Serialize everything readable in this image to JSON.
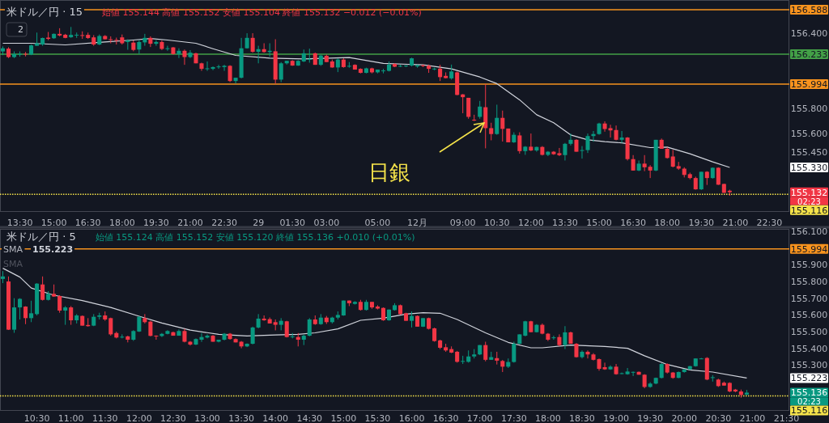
{
  "chart_data": [
    {
      "type": "candlestick",
      "title": "米ドル／円 · 15",
      "subtitle": "始値 155.144 高値 155.152 安値 155.104 終値 155.132 −0.012 (−0.01%)",
      "categories": [
        null,
        null,
        null,
        "13:30",
        null,
        null,
        null,
        null,
        null,
        "15:00",
        null,
        null,
        null,
        null,
        null,
        "16:30",
        null,
        null,
        null,
        null,
        null,
        "18:00",
        null,
        null,
        null,
        null,
        null,
        "19:30",
        null,
        null,
        null,
        null,
        null,
        "21:00",
        null,
        null,
        null,
        null,
        null,
        "22:30",
        null,
        null,
        null,
        null,
        null,
        "29",
        null,
        null,
        null,
        null,
        null,
        "01:30",
        null,
        null,
        null,
        null,
        null,
        "03:00",
        null,
        null,
        null,
        null,
        null,
        null,
        null,
        null,
        "05:00",
        null,
        null,
        null,
        null,
        null,
        null,
        "12月",
        null,
        null,
        null,
        null,
        null,
        null,
        null,
        "09:00",
        null,
        null,
        null,
        null,
        null,
        "10:30",
        null,
        null,
        null,
        null,
        null,
        "12:00",
        null,
        null,
        null,
        null,
        null,
        "13:30",
        null,
        null,
        null,
        null,
        null,
        "15:00",
        null,
        null,
        null,
        null,
        null,
        "16:30",
        null,
        null,
        null,
        null,
        null,
        "18:00",
        null,
        null,
        null,
        null,
        null,
        "19:30",
        null,
        null,
        null,
        null,
        null,
        "21:00",
        null,
        null,
        null,
        null,
        null,
        "22:30",
        null,
        null,
        null
      ],
      "ohlc": [
        [
          156.255,
          156.295,
          156.225,
          156.28
        ],
        [
          156.277,
          156.288,
          156.202,
          156.21
        ],
        [
          156.21,
          156.255,
          156.202,
          156.234
        ],
        [
          156.232,
          156.255,
          156.213,
          156.236
        ],
        [
          156.236,
          156.25,
          156.215,
          156.234
        ],
        [
          156.23,
          156.31,
          156.225,
          156.303
        ],
        [
          156.3,
          156.405,
          156.3,
          156.32
        ],
        [
          156.31,
          156.365,
          156.3,
          156.362
        ],
        [
          156.365,
          156.41,
          156.345,
          156.355
        ],
        [
          156.36,
          156.398,
          156.355,
          156.395
        ],
        [
          156.395,
          156.44,
          156.375,
          156.382
        ],
        [
          156.388,
          156.395,
          156.36,
          156.363
        ],
        [
          156.368,
          156.45,
          156.363,
          156.387
        ],
        [
          156.387,
          156.405,
          156.363,
          156.388
        ],
        [
          156.385,
          156.415,
          156.355,
          156.383
        ],
        [
          156.387,
          156.405,
          156.355,
          156.362
        ],
        [
          156.367,
          156.385,
          156.3,
          156.31
        ],
        [
          156.31,
          156.39,
          156.305,
          156.378
        ],
        [
          156.378,
          156.385,
          156.35,
          156.352
        ],
        [
          156.352,
          156.375,
          156.32,
          156.347
        ],
        [
          156.347,
          156.365,
          156.31,
          156.344
        ],
        [
          156.367,
          156.39,
          156.31,
          156.32
        ],
        [
          156.33,
          156.352,
          156.268,
          156.342
        ],
        [
          156.325,
          156.342,
          156.256,
          156.267
        ],
        [
          156.27,
          156.345,
          156.234,
          156.33
        ],
        [
          156.327,
          156.395,
          156.3,
          156.363
        ],
        [
          156.363,
          156.375,
          156.29,
          156.316
        ],
        [
          156.316,
          156.345,
          156.3,
          156.33
        ],
        [
          156.33,
          156.342,
          156.266,
          156.275
        ],
        [
          156.277,
          156.3,
          156.26,
          156.28
        ],
        [
          156.287,
          156.29,
          156.23,
          156.234
        ],
        [
          156.234,
          156.28,
          156.202,
          156.26
        ],
        [
          156.26,
          156.27,
          156.148,
          156.21
        ],
        [
          156.21,
          156.265,
          156.202,
          156.245
        ],
        [
          156.24,
          156.244,
          156.16,
          156.16
        ],
        [
          156.16,
          156.165,
          156.1,
          156.116
        ],
        [
          156.116,
          156.175,
          156.1,
          156.12
        ],
        [
          156.116,
          156.135,
          156.105,
          156.13
        ],
        [
          156.13,
          156.148,
          156.116,
          156.135
        ],
        [
          156.13,
          156.148,
          156.1,
          156.14
        ],
        [
          156.14,
          156.145,
          156.01,
          156.019
        ],
        [
          156.019,
          156.045,
          155.998,
          156.045
        ],
        [
          156.045,
          156.363,
          156.04,
          156.28
        ],
        [
          156.28,
          156.4,
          156.277,
          156.363
        ],
        [
          156.363,
          156.4,
          156.245,
          156.252
        ],
        [
          156.252,
          156.3,
          156.16,
          156.273
        ],
        [
          156.273,
          156.32,
          156.245,
          156.25
        ],
        [
          156.25,
          156.32,
          156.213,
          156.26
        ],
        [
          156.256,
          156.352,
          155.998,
          156.03
        ],
        [
          156.03,
          156.17,
          156.01,
          156.16
        ],
        [
          156.16,
          156.18,
          156.15,
          156.18
        ],
        [
          156.18,
          156.185,
          156.14,
          156.142
        ],
        [
          156.142,
          156.185,
          156.14,
          156.18
        ],
        [
          156.175,
          156.27,
          156.17,
          156.24
        ],
        [
          156.19,
          156.277,
          156.165,
          156.195
        ],
        [
          156.24,
          156.245,
          156.148,
          156.148
        ],
        [
          156.148,
          156.23,
          156.14,
          156.222
        ],
        [
          156.22,
          156.23,
          156.17,
          156.17
        ],
        [
          156.175,
          156.19,
          156.125,
          156.127
        ],
        [
          156.127,
          156.2,
          156.09,
          156.19
        ],
        [
          156.19,
          156.2,
          156.125,
          156.13
        ],
        [
          156.14,
          156.17,
          156.125,
          156.14
        ],
        [
          156.148,
          156.152,
          156.11,
          156.11
        ],
        [
          156.116,
          156.12,
          156.08,
          156.084
        ],
        [
          156.084,
          156.125,
          156.08,
          156.12
        ],
        [
          156.12,
          156.125,
          156.08,
          156.088
        ],
        [
          156.088,
          156.11,
          156.08,
          156.11
        ],
        [
          156.1,
          156.116,
          156.08,
          156.103
        ],
        [
          156.1,
          156.175,
          156.095,
          156.15
        ],
        [
          156.155,
          156.16,
          156.13,
          156.133
        ],
        [
          156.138,
          156.148,
          156.13,
          156.14
        ],
        [
          156.14,
          156.145,
          156.13,
          156.142
        ],
        [
          156.142,
          156.205,
          156.135,
          156.2
        ],
        [
          156.135,
          156.15,
          156.125,
          156.145
        ],
        [
          156.145,
          156.15,
          156.13,
          156.14
        ],
        [
          156.14,
          156.15,
          156.084,
          156.116
        ],
        [
          156.116,
          156.125,
          156.105,
          156.118
        ],
        [
          156.118,
          156.148,
          156.019,
          156.05
        ],
        [
          156.06,
          156.088,
          156.04,
          156.042
        ],
        [
          156.04,
          156.15,
          156.03,
          156.095
        ],
        [
          156.088,
          156.095,
          155.905,
          155.908
        ],
        [
          155.912,
          155.915,
          155.762,
          155.89
        ],
        [
          155.885,
          155.885,
          155.718,
          155.733
        ],
        [
          155.71,
          155.75,
          155.7,
          155.708
        ],
        [
          155.733,
          155.86,
          155.718,
          155.815
        ],
        [
          155.81,
          155.994,
          155.482,
          155.643
        ],
        [
          155.643,
          155.686,
          155.546,
          155.596
        ],
        [
          155.596,
          155.83,
          155.59,
          155.725
        ],
        [
          155.725,
          155.783,
          155.536,
          155.637
        ],
        [
          155.64,
          155.64,
          155.53,
          155.53
        ],
        [
          155.53,
          155.61,
          155.525,
          155.59
        ],
        [
          155.585,
          155.61,
          155.44,
          155.46
        ],
        [
          155.46,
          155.5,
          155.43,
          155.495
        ],
        [
          155.495,
          155.6,
          155.46,
          155.465
        ],
        [
          155.465,
          155.495,
          155.455,
          155.493
        ],
        [
          155.493,
          155.5,
          155.425,
          155.43
        ],
        [
          155.43,
          155.46,
          155.42,
          155.455
        ],
        [
          155.455,
          155.46,
          155.43,
          155.435
        ],
        [
          155.443,
          155.485,
          155.42,
          155.428
        ],
        [
          155.428,
          155.525,
          155.385,
          155.518
        ],
        [
          155.518,
          155.6,
          155.505,
          155.55
        ],
        [
          155.55,
          155.555,
          155.455,
          155.455
        ],
        [
          155.465,
          155.5,
          155.4,
          155.468
        ],
        [
          155.468,
          155.6,
          155.445,
          155.58
        ],
        [
          155.58,
          155.62,
          155.535,
          155.596
        ],
        [
          155.596,
          155.686,
          155.59,
          155.68
        ],
        [
          155.68,
          155.697,
          155.615,
          155.636
        ],
        [
          155.643,
          155.67,
          155.568,
          155.625
        ],
        [
          155.628,
          155.664,
          155.546,
          155.55
        ],
        [
          155.55,
          155.62,
          155.525,
          155.568
        ],
        [
          155.568,
          155.572,
          155.385,
          155.396
        ],
        [
          155.396,
          155.428,
          155.305,
          155.305
        ],
        [
          155.305,
          155.385,
          155.3,
          155.36
        ],
        [
          155.36,
          155.428,
          155.3,
          155.331
        ],
        [
          155.335,
          155.348,
          155.245,
          155.305
        ],
        [
          155.305,
          155.55,
          155.3,
          155.55
        ],
        [
          155.55,
          155.56,
          155.478,
          155.478
        ],
        [
          155.478,
          155.49,
          155.4,
          155.405
        ],
        [
          155.417,
          155.47,
          155.33,
          155.336
        ],
        [
          155.34,
          155.374,
          155.31,
          155.32
        ],
        [
          155.32,
          155.331,
          155.25,
          155.27
        ],
        [
          155.276,
          155.288,
          155.235,
          155.245
        ],
        [
          155.245,
          155.256,
          155.152,
          155.155
        ],
        [
          155.155,
          155.295,
          155.15,
          155.295
        ],
        [
          155.295,
          155.3,
          155.19,
          155.245
        ],
        [
          155.245,
          155.33,
          155.24,
          155.327
        ],
        [
          155.327,
          155.33,
          155.19,
          155.192
        ],
        [
          155.198,
          155.2,
          155.127,
          155.127
        ],
        [
          155.144,
          155.152,
          155.104,
          155.132
        ],
        null,
        null,
        null,
        null,
        null,
        null,
        null,
        null,
        null,
        null
      ],
      "series": [
        {
          "type": "line",
          "color": "#d1d4dc",
          "values": [
            156.32,
            null,
            null,
            null,
            null,
            156.32,
            null,
            null,
            null,
            null,
            null,
            156.307,
            null,
            null,
            null,
            null,
            null,
            null,
            156.331,
            null,
            null,
            null,
            null,
            156.346,
            null,
            null,
            156.357,
            null,
            null,
            156.346,
            null,
            null,
            null,
            null,
            156.32,
            null,
            null,
            156.277,
            null,
            null,
            null,
            156.223,
            null,
            null,
            null,
            null,
            null,
            156.202,
            null,
            null,
            null,
            null,
            null,
            156.195,
            null,
            null,
            null,
            null,
            null,
            null,
            null,
            156.206,
            null,
            null,
            null,
            null,
            null,
            156.159,
            null,
            null,
            null,
            null,
            null,
            null,
            156.148,
            null,
            null,
            null,
            null,
            156.116,
            null,
            null,
            null,
            null,
            156.051,
            null,
            null,
            155.998,
            null,
            null,
            null,
            155.869,
            null,
            null,
            155.75,
            null,
            null,
            155.686,
            null,
            null,
            155.589,
            null,
            null,
            155.55,
            null,
            null,
            155.535,
            null,
            null,
            155.525,
            null,
            null,
            null,
            null,
            155.488,
            null,
            null,
            155.492,
            null,
            null,
            null,
            155.439,
            null,
            null,
            null,
            155.374,
            null,
            null,
            155.33,
            null,
            null,
            null,
            null,
            null,
            null,
            null,
            null,
            null,
            null
          ]
        }
      ],
      "ylim": [
        154.975,
        156.665
      ],
      "yticks": [
        {
          "value": 156.4,
          "label": "156.400"
        },
        {
          "value": 155.8,
          "label": "155.800"
        },
        {
          "value": 155.6,
          "label": "155.600"
        },
        {
          "value": 155.45,
          "label": "155.450"
        }
      ],
      "ref_lines": [
        {
          "axis": "y",
          "value": 156.588,
          "label": "156.588",
          "color": "#f7931e"
        },
        {
          "axis": "y",
          "value": 156.233,
          "label": "156.233",
          "color": "#43a047"
        },
        {
          "axis": "y",
          "value": 155.994,
          "label": "155.994",
          "color": "#f7931e"
        },
        {
          "axis": "y",
          "value": 155.116,
          "label": "155.116",
          "color": "#f5e34a",
          "line_style": "dotted"
        }
      ],
      "annotations": [
        "2",
        "日銀",
        "155.330",
        "155.132",
        "02:23"
      ]
    },
    {
      "type": "candlestick",
      "title": "米ドル／円 · 5",
      "subtitle": "始値 155.124 高値 155.152 安値 155.120 終値 155.136 +0.010 (+0.01%)",
      "categories": [
        null,
        null,
        null,
        null,
        null,
        null,
        "10:30",
        null,
        null,
        null,
        null,
        null,
        "11:00",
        null,
        null,
        null,
        null,
        null,
        "11:30",
        null,
        null,
        null,
        null,
        null,
        "12:00",
        null,
        null,
        null,
        null,
        null,
        "12:30",
        null,
        null,
        null,
        null,
        null,
        "13:00",
        null,
        null,
        null,
        null,
        null,
        "13:30",
        null,
        null,
        null,
        null,
        null,
        "14:00",
        null,
        null,
        null,
        null,
        null,
        "14:30",
        null,
        null,
        null,
        null,
        null,
        "15:00",
        null,
        null,
        null,
        null,
        null,
        "15:30",
        null,
        null,
        null,
        null,
        null,
        "16:00",
        null,
        null,
        null,
        null,
        null,
        "16:30",
        null,
        null,
        null,
        null,
        null,
        "17:00",
        null,
        null,
        null,
        null,
        null,
        "17:30",
        null,
        null,
        null,
        null,
        null,
        "18:00",
        null,
        null,
        null,
        null,
        null,
        "18:30",
        null,
        null,
        null,
        null,
        null,
        "19:00",
        null,
        null,
        null,
        null,
        null,
        "19:30",
        null,
        null,
        null,
        null,
        null,
        "20:00",
        null,
        null,
        null,
        null,
        null,
        "20:30",
        null,
        null,
        null,
        null,
        null,
        "21:00",
        null,
        null,
        null,
        null,
        null,
        "21:30"
      ],
      "ohlc": [
        [
          155.815,
          155.862,
          155.79,
          155.83
        ],
        [
          155.8,
          155.83,
          155.51,
          155.512
        ],
        [
          155.512,
          155.7,
          155.493,
          155.645
        ],
        [
          155.645,
          155.7,
          155.573,
          155.696
        ],
        [
          155.65,
          155.652,
          155.545,
          155.581
        ],
        [
          155.581,
          155.685,
          155.557,
          155.61
        ],
        [
          155.605,
          155.79,
          155.597,
          155.787
        ],
        [
          155.782,
          155.83,
          155.686,
          155.69
        ],
        [
          155.69,
          155.742,
          155.686,
          155.726
        ],
        [
          155.726,
          155.782,
          155.708,
          155.71
        ],
        [
          155.713,
          155.718,
          155.613,
          155.626
        ],
        [
          155.626,
          155.653,
          155.541,
          155.645
        ],
        [
          155.645,
          155.653,
          155.541,
          155.568
        ],
        [
          155.568,
          155.605,
          155.549,
          155.597
        ],
        [
          155.594,
          155.597,
          155.536,
          155.536
        ],
        [
          155.54,
          155.581,
          155.53,
          155.533
        ],
        [
          155.536,
          155.605,
          155.533,
          155.589
        ],
        [
          155.589,
          155.613,
          155.573,
          155.597
        ],
        [
          155.597,
          155.621,
          155.565,
          155.573
        ],
        [
          155.581,
          155.584,
          155.476,
          155.484
        ],
        [
          155.492,
          155.5,
          155.46,
          155.465
        ],
        [
          155.468,
          155.484,
          155.46,
          155.47
        ],
        [
          155.472,
          155.476,
          155.436,
          155.452
        ],
        [
          155.452,
          155.509,
          155.445,
          155.504
        ],
        [
          155.501,
          155.592,
          155.498,
          155.589
        ],
        [
          155.581,
          155.605,
          155.549,
          155.557
        ],
        [
          155.56,
          155.565,
          155.472,
          155.475
        ],
        [
          155.476,
          155.478,
          155.452,
          155.474
        ],
        [
          155.474,
          155.492,
          155.468,
          155.487
        ],
        [
          155.487,
          155.509,
          155.484,
          155.504
        ],
        [
          155.497,
          155.5,
          155.476,
          155.476
        ],
        [
          155.476,
          155.513,
          155.476,
          155.504
        ],
        [
          155.504,
          155.517,
          155.436,
          155.44
        ],
        [
          155.44,
          155.444,
          155.417,
          155.423
        ],
        [
          155.423,
          155.46,
          155.42,
          155.456
        ],
        [
          155.452,
          155.492,
          155.439,
          155.468
        ],
        [
          155.465,
          155.484,
          155.46,
          155.476
        ],
        [
          155.476,
          155.48,
          155.44,
          155.44
        ],
        [
          155.44,
          155.452,
          155.436,
          155.452
        ],
        [
          155.452,
          155.492,
          155.448,
          155.488
        ],
        [
          155.488,
          155.492,
          155.452,
          155.456
        ],
        [
          155.456,
          155.46,
          155.436,
          155.436
        ],
        [
          155.44,
          155.444,
          155.401,
          155.412
        ],
        [
          155.412,
          155.43,
          155.408,
          155.428
        ],
        [
          155.428,
          155.53,
          155.424,
          155.525
        ],
        [
          155.525,
          155.605,
          155.52,
          155.578
        ],
        [
          155.578,
          155.597,
          155.565,
          155.568
        ],
        [
          155.575,
          155.585,
          155.549,
          155.549
        ],
        [
          155.557,
          155.573,
          155.508,
          155.541
        ],
        [
          155.541,
          155.581,
          155.508,
          155.565
        ],
        [
          155.562,
          155.565,
          155.465,
          155.468
        ],
        [
          155.47,
          155.492,
          155.46,
          155.472
        ],
        [
          155.468,
          155.492,
          155.412,
          155.452
        ],
        [
          155.452,
          155.484,
          155.42,
          155.476
        ],
        [
          155.476,
          155.581,
          155.472,
          155.573
        ],
        [
          155.573,
          155.597,
          155.541,
          155.545
        ],
        [
          155.545,
          155.605,
          155.541,
          155.584
        ],
        [
          155.584,
          155.594,
          155.546,
          155.557
        ],
        [
          155.557,
          155.589,
          155.549,
          155.584
        ],
        [
          155.584,
          155.621,
          155.573,
          155.6
        ],
        [
          155.597,
          155.686,
          155.595,
          155.686
        ],
        [
          155.686,
          155.686,
          155.653,
          155.67
        ],
        [
          155.666,
          155.682,
          155.662,
          155.678
        ],
        [
          155.678,
          155.69,
          155.626,
          155.63
        ],
        [
          155.63,
          155.69,
          155.626,
          155.678
        ],
        [
          155.678,
          155.678,
          155.637,
          155.645
        ],
        [
          155.65,
          155.658,
          155.633,
          155.638
        ],
        [
          155.642,
          155.645,
          155.565,
          155.568
        ],
        [
          155.568,
          155.633,
          155.565,
          155.632
        ],
        [
          155.629,
          155.67,
          155.626,
          155.658
        ],
        [
          155.658,
          155.662,
          155.601,
          155.605
        ],
        [
          155.61,
          155.613,
          155.565,
          155.565
        ],
        [
          155.565,
          155.621,
          155.525,
          155.594
        ],
        [
          155.594,
          155.597,
          155.53,
          155.53
        ],
        [
          155.53,
          155.581,
          155.528,
          155.581
        ],
        [
          155.581,
          155.584,
          155.513,
          155.517
        ],
        [
          155.52,
          155.524,
          155.44,
          155.444
        ],
        [
          155.448,
          155.452,
          155.396,
          155.404
        ],
        [
          155.407,
          155.428,
          155.38,
          155.388
        ],
        [
          155.396,
          155.412,
          155.372,
          155.375
        ],
        [
          155.38,
          155.385,
          155.315,
          155.32
        ],
        [
          155.323,
          155.356,
          155.307,
          155.325
        ],
        [
          155.32,
          155.388,
          155.315,
          155.352
        ],
        [
          155.352,
          155.396,
          155.34,
          155.364
        ],
        [
          155.364,
          155.42,
          155.36,
          155.42
        ],
        [
          155.42,
          155.44,
          155.323,
          155.332
        ],
        [
          155.332,
          155.38,
          155.332,
          155.348
        ],
        [
          155.342,
          155.38,
          155.304,
          155.327
        ],
        [
          155.325,
          155.331,
          155.259,
          155.291
        ],
        [
          155.291,
          155.34,
          155.283,
          155.319
        ],
        [
          155.319,
          155.44,
          155.315,
          155.428
        ],
        [
          155.428,
          155.484,
          155.425,
          155.484
        ],
        [
          155.476,
          155.565,
          155.472,
          155.562
        ],
        [
          155.562,
          155.565,
          155.497,
          155.497
        ],
        [
          155.497,
          155.545,
          155.495,
          155.541
        ],
        [
          155.541,
          155.549,
          155.484,
          155.488
        ],
        [
          155.488,
          155.492,
          155.444,
          155.452
        ],
        [
          155.465,
          155.476,
          155.452,
          155.466
        ],
        [
          155.468,
          155.484,
          155.412,
          155.42
        ],
        [
          155.42,
          155.533,
          155.396,
          155.496
        ],
        [
          155.496,
          155.5,
          155.428,
          155.428
        ],
        [
          155.428,
          155.432,
          155.345,
          155.348
        ],
        [
          155.348,
          155.388,
          155.34,
          155.38
        ],
        [
          155.38,
          155.388,
          155.34,
          155.364
        ],
        [
          155.364,
          155.372,
          155.328,
          155.332
        ],
        [
          155.336,
          155.34,
          155.267,
          155.278
        ],
        [
          155.288,
          155.315,
          155.272,
          155.275
        ],
        [
          155.275,
          155.299,
          155.272,
          155.291
        ],
        [
          155.291,
          155.307,
          155.243,
          155.246
        ],
        [
          155.25,
          155.256,
          155.246,
          155.252
        ],
        [
          155.246,
          155.283,
          155.243,
          155.262
        ],
        [
          155.259,
          155.262,
          155.235,
          155.26
        ],
        [
          155.26,
          155.262,
          155.243,
          155.243
        ],
        [
          155.243,
          155.246,
          155.162,
          155.17
        ],
        [
          155.17,
          155.198,
          155.165,
          155.19
        ],
        [
          155.19,
          155.226,
          155.186,
          155.224
        ],
        [
          155.224,
          155.312,
          155.22,
          155.307
        ],
        [
          155.307,
          155.311,
          155.25,
          155.256
        ],
        [
          155.256,
          155.259,
          155.219,
          155.224
        ],
        [
          155.224,
          155.262,
          155.222,
          155.259
        ],
        [
          155.259,
          155.275,
          155.255,
          155.275
        ],
        [
          155.275,
          155.296,
          155.272,
          155.294
        ],
        [
          155.294,
          155.34,
          155.291,
          155.34
        ],
        [
          155.34,
          155.343,
          155.336,
          155.34
        ],
        [
          155.343,
          155.348,
          155.21,
          155.214
        ],
        [
          155.226,
          155.24,
          155.202,
          155.228
        ],
        [
          155.214,
          155.219,
          155.17,
          155.175
        ],
        [
          155.195,
          155.202,
          155.178,
          155.178
        ],
        [
          155.194,
          155.198,
          155.138,
          155.143
        ],
        [
          155.154,
          155.158,
          155.138,
          155.143
        ],
        [
          155.143,
          155.154,
          155.106,
          155.122
        ],
        [
          155.124,
          155.152,
          155.12,
          155.136
        ],
        null,
        null,
        null,
        null,
        null,
        null,
        null
      ],
      "series": [
        {
          "type": "line",
          "name": "SMA",
          "color": "#d1d4dc",
          "values": [
            155.879,
            null,
            null,
            155.826,
            null,
            155.761,
            null,
            null,
            null,
            155.718,
            null,
            null,
            null,
            null,
            155.686,
            null,
            null,
            null,
            null,
            155.645,
            null,
            null,
            null,
            null,
            155.592,
            null,
            null,
            null,
            155.552,
            null,
            null,
            null,
            null,
            155.509,
            null,
            null,
            null,
            null,
            155.484,
            null,
            null,
            null,
            null,
            155.475,
            null,
            null,
            null,
            null,
            155.48,
            null,
            null,
            null,
            155.484,
            null,
            null,
            155.493,
            null,
            null,
            null,
            155.517,
            null,
            null,
            null,
            155.568,
            null,
            null,
            null,
            155.581,
            null,
            null,
            null,
            155.605,
            null,
            null,
            155.613,
            null,
            null,
            155.61,
            null,
            null,
            155.573,
            null,
            null,
            null,
            null,
            155.493,
            null,
            null,
            null,
            155.436,
            null,
            null,
            null,
            155.404,
            null,
            155.404,
            null,
            null,
            null,
            null,
            155.42,
            null,
            null,
            null,
            null,
            null,
            155.412,
            null,
            null,
            null,
            155.401,
            null,
            null,
            155.356,
            null,
            null,
            null,
            155.304,
            null,
            null,
            null,
            155.272,
            null,
            null,
            null,
            155.259,
            null,
            null,
            null,
            null,
            null,
            155.223,
            null,
            null,
            null,
            null,
            null,
            null,
            null
          ]
        }
      ],
      "ylim": [
        155.027,
        156.114
      ],
      "yticks": [
        {
          "value": 156.1,
          "label": "156.100"
        },
        {
          "value": 155.9,
          "label": "155.900"
        },
        {
          "value": 155.8,
          "label": "155.800"
        },
        {
          "value": 155.7,
          "label": "155.700"
        },
        {
          "value": 155.6,
          "label": "155.600"
        },
        {
          "value": 155.5,
          "label": "155.500"
        },
        {
          "value": 155.4,
          "label": "155.400"
        },
        {
          "value": 155.3,
          "label": "155.300"
        }
      ],
      "ref_lines": [
        {
          "axis": "y",
          "value": 155.994,
          "label": "155.994",
          "color": "#f7931e"
        },
        {
          "axis": "y",
          "value": 155.116,
          "label": "155.116",
          "color": "#f5e34a",
          "line_style": "dotted"
        }
      ],
      "annotations": [
        "155.223",
        "SMA",
        "155.223",
        "155.136",
        "02:23"
      ]
    }
  ]
}
